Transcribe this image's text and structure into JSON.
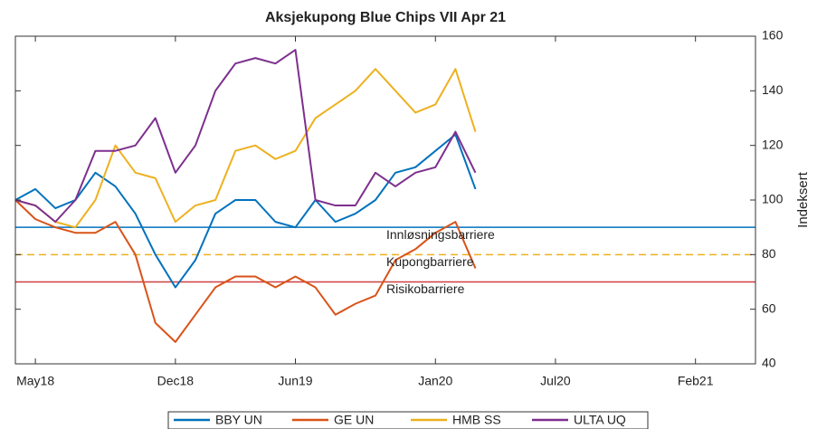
{
  "chart_data": {
    "type": "line",
    "title": "Aksjekupong Blue Chips VII Apr 21",
    "y_label": "Indeksert",
    "x": [
      "2018-04",
      "2018-05",
      "2018-06",
      "2018-07",
      "2018-08",
      "2018-09",
      "2018-10",
      "2018-11",
      "2018-12",
      "2019-01",
      "2019-02",
      "2019-03",
      "2019-04",
      "2019-05",
      "2019-06",
      "2019-07",
      "2019-08",
      "2019-09",
      "2019-10",
      "2019-11",
      "2019-12",
      "2020-01",
      "2020-02",
      "2020-03"
    ],
    "xlim": [
      "2018-04",
      "2021-05"
    ],
    "xticks": [
      {
        "value": "2018-05",
        "label": "May18"
      },
      {
        "value": "2018-12",
        "label": "Dec18"
      },
      {
        "value": "2019-06",
        "label": "Jun19"
      },
      {
        "value": "2020-01",
        "label": "Jan20"
      },
      {
        "value": "2020-07",
        "label": "Jul20"
      },
      {
        "value": "2021-02",
        "label": "Feb21"
      }
    ],
    "ylim": [
      40,
      160
    ],
    "yticks": [
      40,
      60,
      80,
      100,
      120,
      140,
      160
    ],
    "y_axis_side": "right",
    "series": [
      {
        "name": "BBY UN",
        "color": "#0072bd",
        "values": [
          100,
          104,
          97,
          100,
          110,
          105,
          95,
          80,
          68,
          78,
          95,
          100,
          100,
          92,
          90,
          100,
          92,
          95,
          100,
          110,
          112,
          118,
          124,
          104
        ]
      },
      {
        "name": "GE UN",
        "color": "#d95319",
        "values": [
          100,
          93,
          90,
          88,
          88,
          92,
          80,
          55,
          48,
          58,
          68,
          72,
          72,
          68,
          72,
          68,
          58,
          62,
          65,
          78,
          82,
          88,
          92,
          75
        ]
      },
      {
        "name": "HMB SS",
        "color": "#edb120",
        "values": [
          100,
          98,
          92,
          90,
          100,
          120,
          110,
          108,
          92,
          98,
          100,
          118,
          120,
          115,
          118,
          130,
          135,
          140,
          148,
          140,
          132,
          135,
          148,
          125
        ]
      },
      {
        "name": "ULTA UQ",
        "color": "#7e2f8e",
        "values": [
          100,
          98,
          92,
          100,
          118,
          118,
          120,
          130,
          110,
          120,
          140,
          150,
          152,
          150,
          155,
          100,
          98,
          98,
          110,
          105,
          110,
          112,
          125,
          110
        ]
      }
    ],
    "barriers": [
      {
        "label": "Innløsningsbarriere",
        "value": 90,
        "color": "#0072bd",
        "dashed": false
      },
      {
        "label": "Kupongbarriere",
        "value": 80,
        "color": "#edb120",
        "dashed": true
      },
      {
        "label": "Risikobarriere",
        "value": 70,
        "color": "#d04040",
        "dashed": false
      }
    ],
    "legend": "bottom"
  }
}
